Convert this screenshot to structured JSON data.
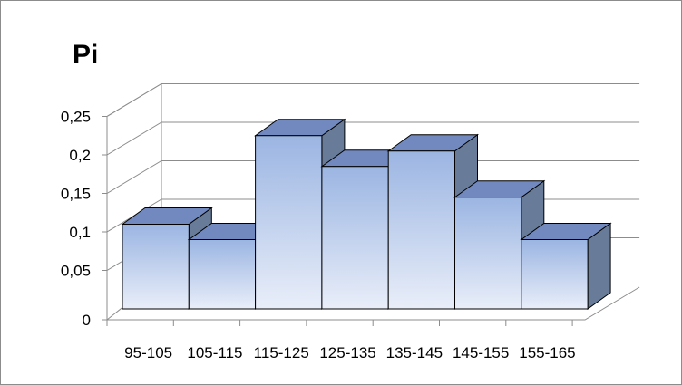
{
  "chart_data": {
    "type": "bar",
    "style": "3d-clustered-column",
    "title": "Pi",
    "categories": [
      "95-105",
      "105-115",
      "115-125",
      "125-135",
      "135-145",
      "145-155",
      "155-165"
    ],
    "values": [
      0.11,
      0.09,
      0.225,
      0.185,
      0.205,
      0.145,
      0.09
    ],
    "ylim": [
      0,
      0.25
    ],
    "yticks": [
      "0",
      "0,05",
      "0,1",
      "0,15",
      "0,2",
      "0,25"
    ],
    "xlabel": "",
    "ylabel": "",
    "grid": true,
    "legend": "none",
    "colors": {
      "bar_front_top": "#9bb5e2",
      "bar_front_bottom": "#e9eef9",
      "bar_top": "#7189bf",
      "bar_side": "#687c99",
      "bar_edge": "#000000",
      "gridline": "#8c8c8c"
    }
  }
}
